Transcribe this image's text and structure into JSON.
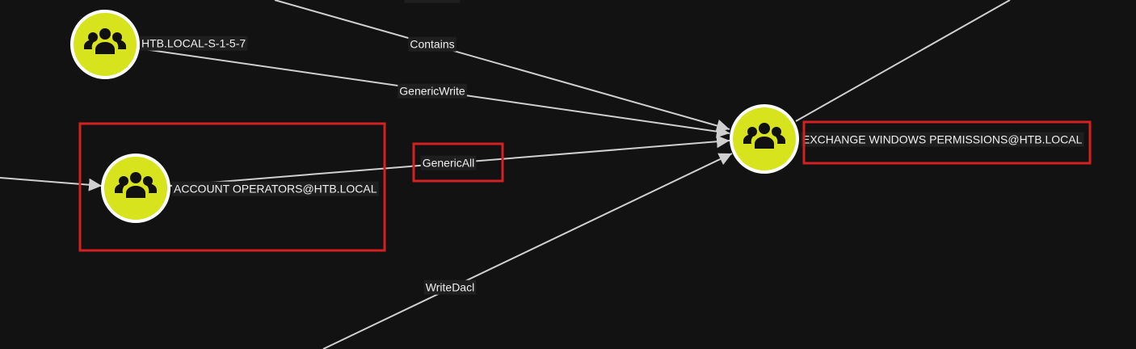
{
  "nodes": [
    {
      "label": "HTB.LOCAL-S-1-5-7"
    },
    {
      "label": "ACCOUNT OPERATORS@HTB.LOCAL"
    },
    {
      "label": "EXCHANGE WINDOWS PERMISSIONS@HTB.LOCAL"
    }
  ],
  "edges": [
    {
      "label": "GenericAll"
    },
    {
      "label": "Contains"
    },
    {
      "label": "GenericWrite"
    },
    {
      "label": "GenericAll"
    },
    {
      "label": "WriteDacl"
    }
  ]
}
